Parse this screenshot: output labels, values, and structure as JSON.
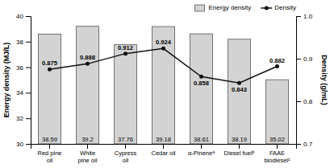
{
  "chart_data": {
    "type": "bar",
    "categories": [
      "Red pine\noil",
      "White\npine oil",
      "Cypress\noil",
      "Cedar oil",
      "α-Pineneᵃ",
      "Diesel fuelᵇ",
      "FAAE\nbiodieselᶜ"
    ],
    "ylabel": "Energy density (MJ/L)",
    "y2label": "Density (g/mL)",
    "ylim": [
      30,
      40
    ],
    "yticks": [
      30,
      32,
      34,
      36,
      38,
      40
    ],
    "y2lim": [
      0.7,
      1.0
    ],
    "y2ticks": [
      0.7,
      0.8,
      0.9,
      {
        "value": 1.0,
        "label": "1.0"
      }
    ],
    "series": [
      {
        "name": "Energy density",
        "type": "bar",
        "color": "#d3d3d3",
        "values": [
          38.59,
          39.2,
          37.76,
          39.18,
          38.61,
          38.19,
          35.02
        ]
      },
      {
        "name": "Density",
        "type": "line",
        "axis": "y2",
        "color": "#111111",
        "marker": "circle",
        "values": [
          0.875,
          0.888,
          0.912,
          0.924,
          0.858,
          0.843,
          0.882
        ]
      }
    ],
    "legend": "upper right",
    "grid": false,
    "data_labels": true
  }
}
